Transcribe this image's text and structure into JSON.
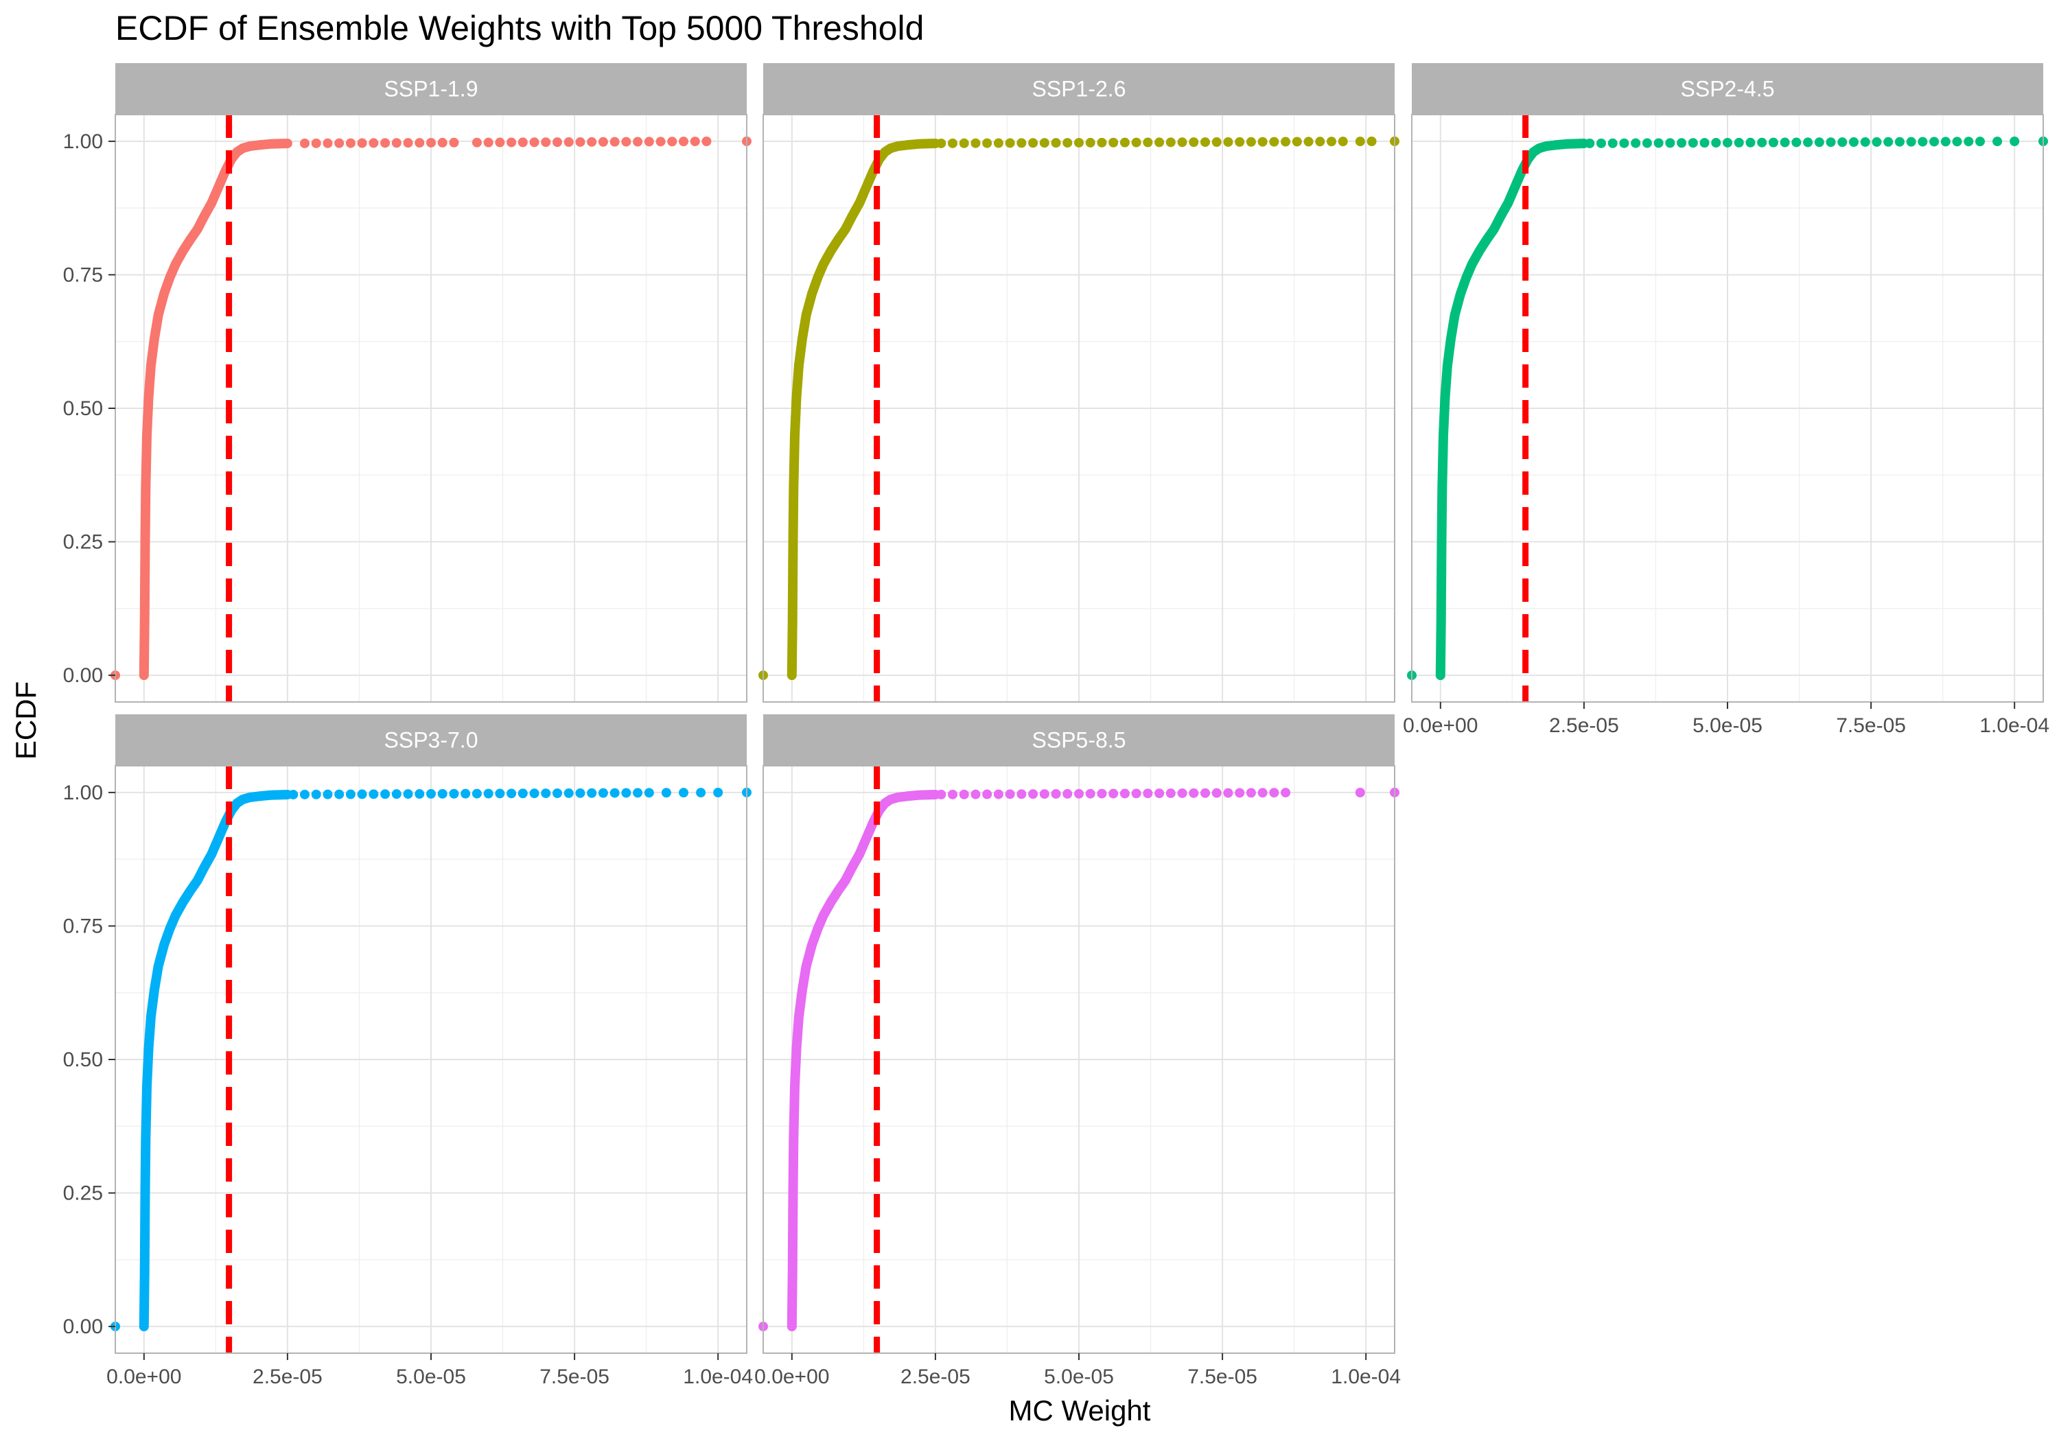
{
  "chart_data": {
    "type": "scatter",
    "title": "ECDF of Ensemble Weights with Top 5000 Threshold",
    "xlabel": "MC Weight",
    "ylabel": "ECDF",
    "xlim": [
      -5e-06,
      0.000105
    ],
    "ylim": [
      -0.05,
      1.05
    ],
    "x_ticks": [
      0,
      2.5e-05,
      5e-05,
      7.5e-05,
      0.0001
    ],
    "x_tick_labels": [
      "0.0e+00",
      "2.5e-05",
      "5.0e-05",
      "7.5e-05",
      "1.0e-04"
    ],
    "y_ticks": [
      0,
      0.25,
      0.5,
      0.75,
      1.0
    ],
    "y_tick_labels": [
      "0.00",
      "0.25",
      "0.50",
      "0.75",
      "1.00"
    ],
    "grid": true,
    "legend": "none",
    "threshold": {
      "x": 1.48e-05,
      "color": "#ff0000",
      "style": "dashed"
    },
    "curve_shape": {
      "x": [
        0,
        1e-07,
        2e-07,
        3e-07,
        5e-07,
        8e-07,
        1.2e-06,
        1.8e-06,
        2.5e-06,
        3.5e-06,
        4.5e-06,
        5.5e-06,
        6.8e-06,
        8e-06,
        9.3e-06,
        1.05e-05,
        1.18e-05,
        1.3e-05,
        1.42e-05,
        1.52e-05,
        1.62e-05,
        1.72e-05,
        1.85e-05,
        2e-05,
        2.2e-05,
        2.5e-05
      ],
      "y": [
        0,
        0.1,
        0.25,
        0.35,
        0.45,
        0.52,
        0.58,
        0.63,
        0.675,
        0.715,
        0.745,
        0.77,
        0.795,
        0.815,
        0.835,
        0.86,
        0.885,
        0.915,
        0.945,
        0.966,
        0.98,
        0.987,
        0.991,
        0.993,
        0.995,
        0.996
      ]
    },
    "panels": [
      {
        "name": "SSP1-1.9",
        "color": "#F8766D",
        "row": 0,
        "col": 0,
        "show_x_axis": false,
        "min_point": -5e-06,
        "tail_x": [
          2.8e-05,
          3e-05,
          3.2e-05,
          3.4e-05,
          3.6e-05,
          3.8e-05,
          4e-05,
          4.2e-05,
          4.4e-05,
          4.6e-05,
          4.8e-05,
          5e-05,
          5.2e-05,
          5.4e-05,
          5.8e-05,
          6e-05,
          6.2e-05,
          6.4e-05,
          6.6e-05,
          6.8e-05,
          7e-05,
          7.2e-05,
          7.4e-05,
          7.6e-05,
          7.8e-05,
          8e-05,
          8.2e-05,
          8.4e-05,
          8.6e-05,
          8.8e-05,
          9e-05,
          9.2e-05,
          9.4e-05,
          9.6e-05,
          9.8e-05,
          0.000105
        ]
      },
      {
        "name": "SSP1-2.6",
        "color": "#A3A500",
        "row": 0,
        "col": 1,
        "show_x_axis": false,
        "min_point": -5e-06,
        "tail_x": [
          2.6e-05,
          2.8e-05,
          3e-05,
          3.2e-05,
          3.4e-05,
          3.6e-05,
          3.8e-05,
          4e-05,
          4.2e-05,
          4.4e-05,
          4.6e-05,
          4.8e-05,
          5e-05,
          5.2e-05,
          5.4e-05,
          5.6e-05,
          5.8e-05,
          6e-05,
          6.2e-05,
          6.4e-05,
          6.6e-05,
          6.8e-05,
          7e-05,
          7.2e-05,
          7.4e-05,
          7.6e-05,
          7.8e-05,
          8e-05,
          8.2e-05,
          8.4e-05,
          8.6e-05,
          8.8e-05,
          9e-05,
          9.2e-05,
          9.4e-05,
          9.6e-05,
          9.9e-05,
          0.000101,
          0.000105
        ]
      },
      {
        "name": "SSP2-4.5",
        "color": "#00BF7D",
        "row": 0,
        "col": 2,
        "show_x_axis": true,
        "min_point": -5e-06,
        "tail_x": [
          2.6e-05,
          2.8e-05,
          3e-05,
          3.2e-05,
          3.4e-05,
          3.6e-05,
          3.8e-05,
          4e-05,
          4.2e-05,
          4.4e-05,
          4.6e-05,
          4.8e-05,
          5e-05,
          5.2e-05,
          5.4e-05,
          5.6e-05,
          5.8e-05,
          6e-05,
          6.2e-05,
          6.4e-05,
          6.6e-05,
          6.8e-05,
          7e-05,
          7.2e-05,
          7.4e-05,
          7.6e-05,
          7.8e-05,
          8e-05,
          8.2e-05,
          8.4e-05,
          8.6e-05,
          8.8e-05,
          9e-05,
          9.2e-05,
          9.4e-05,
          9.7e-05,
          0.0001,
          0.000105
        ]
      },
      {
        "name": "SSP3-7.0",
        "color": "#00B0F6",
        "row": 1,
        "col": 0,
        "show_x_axis": true,
        "min_point": -5e-06,
        "tail_x": [
          2.6e-05,
          2.8e-05,
          3e-05,
          3.2e-05,
          3.4e-05,
          3.6e-05,
          3.8e-05,
          4e-05,
          4.2e-05,
          4.4e-05,
          4.6e-05,
          4.8e-05,
          5e-05,
          5.2e-05,
          5.4e-05,
          5.6e-05,
          5.8e-05,
          6e-05,
          6.2e-05,
          6.4e-05,
          6.6e-05,
          6.8e-05,
          7e-05,
          7.2e-05,
          7.4e-05,
          7.6e-05,
          7.8e-05,
          8e-05,
          8.2e-05,
          8.4e-05,
          8.6e-05,
          8.8e-05,
          9.1e-05,
          9.4e-05,
          9.7e-05,
          0.0001,
          0.000105
        ]
      },
      {
        "name": "SSP5-8.5",
        "color": "#E76BF3",
        "row": 1,
        "col": 1,
        "show_x_axis": true,
        "min_point": -5e-06,
        "tail_x": [
          2.6e-05,
          2.8e-05,
          3e-05,
          3.2e-05,
          3.4e-05,
          3.6e-05,
          3.8e-05,
          4e-05,
          4.2e-05,
          4.4e-05,
          4.6e-05,
          4.8e-05,
          5e-05,
          5.2e-05,
          5.4e-05,
          5.6e-05,
          5.8e-05,
          6e-05,
          6.2e-05,
          6.4e-05,
          6.6e-05,
          6.8e-05,
          7e-05,
          7.2e-05,
          7.4e-05,
          7.6e-05,
          7.8e-05,
          8e-05,
          8.2e-05,
          8.4e-05,
          8.6e-05,
          9.9e-05,
          0.000105
        ]
      }
    ]
  }
}
